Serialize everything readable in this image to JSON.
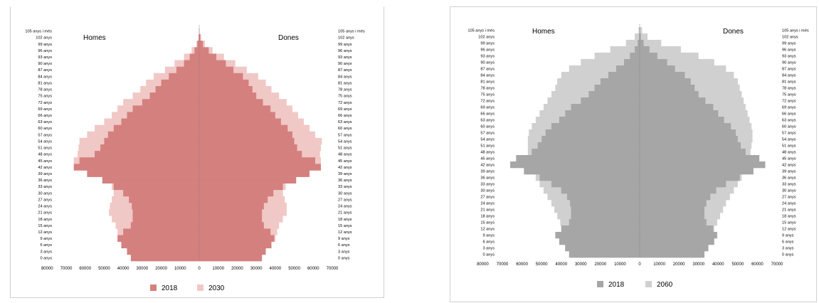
{
  "chart_data": [
    {
      "type": "bar",
      "orientation": "horizontal-pyramid",
      "left_label": "Homes",
      "right_label": "Dones",
      "xlim": [
        -80000,
        70000
      ],
      "x_ticks": [
        "80000",
        "70000",
        "60000",
        "50000",
        "40000",
        "30000",
        "20000",
        "10000",
        "0",
        "10000",
        "20000",
        "30000",
        "40000",
        "50000",
        "60000",
        "70000"
      ],
      "y_tick_labels": [
        "0 anys",
        "3 anys",
        "6 anys",
        "9 anys",
        "12 anys",
        "15 anys",
        "18 anys",
        "21 anys",
        "24 anys",
        "27 anys",
        "30 anys",
        "33 anys",
        "36 anys",
        "39 anys",
        "42 anys",
        "45 anys",
        "48 anys",
        "51 anys",
        "54 anys",
        "57 anys",
        "60 anys",
        "63 anys",
        "66 anys",
        "69 anys",
        "72 anys",
        "75 anys",
        "78 anys",
        "81 anys",
        "84 anys",
        "87 anys",
        "90 anys",
        "93 anys",
        "96 anys",
        "99 anys",
        "102 anys",
        "105 anys i més"
      ],
      "age_groups": [
        0,
        3,
        6,
        9,
        12,
        15,
        18,
        21,
        24,
        27,
        30,
        33,
        36,
        39,
        42,
        45,
        48,
        51,
        54,
        57,
        60,
        63,
        66,
        69,
        72,
        75,
        78,
        81,
        84,
        87,
        90,
        93,
        96,
        99,
        102,
        105
      ],
      "series": [
        {
          "name": "2018",
          "color": "#d4807f",
          "men": [
            36000,
            38000,
            41000,
            43000,
            40000,
            36000,
            35000,
            35000,
            35500,
            37000,
            40000,
            45000,
            51000,
            59000,
            66000,
            63000,
            55000,
            52000,
            50000,
            48000,
            45000,
            41000,
            38000,
            35000,
            30000,
            26000,
            23000,
            20000,
            16000,
            12000,
            8000,
            5000,
            2500,
            1000,
            300,
            50
          ],
          "women": [
            33000,
            35000,
            38000,
            39500,
            37500,
            34000,
            33000,
            33000,
            34000,
            36000,
            39000,
            44000,
            51000,
            58000,
            64000,
            61000,
            54000,
            51500,
            50000,
            49000,
            46500,
            43000,
            40000,
            37500,
            33500,
            30000,
            28000,
            26000,
            23000,
            18000,
            14000,
            9000,
            5000,
            2000,
            600,
            100
          ]
        },
        {
          "name": "2030",
          "color": "#f0c8c6",
          "men": [
            34000,
            37000,
            40000,
            42000,
            43000,
            44000,
            46000,
            47500,
            47000,
            46000,
            45000,
            46000,
            50000,
            57000,
            64000,
            66000,
            64000,
            63500,
            63000,
            59000,
            55000,
            50000,
            46000,
            43000,
            40000,
            35000,
            31000,
            28000,
            24000,
            18000,
            13000,
            8000,
            4000,
            1500,
            400,
            80
          ],
          "women": [
            32000,
            35000,
            38000,
            40000,
            41000,
            42000,
            44000,
            46000,
            46000,
            45000,
            44000,
            45500,
            50000,
            56000,
            62000,
            64000,
            63500,
            64000,
            64500,
            61000,
            58000,
            55000,
            52000,
            49000,
            46000,
            42000,
            38000,
            35000,
            31000,
            25000,
            19000,
            13000,
            7000,
            3000,
            900,
            150
          ]
        }
      ],
      "legend": [
        "2018",
        "2030"
      ],
      "legend_position": "bottom"
    },
    {
      "type": "bar",
      "orientation": "horizontal-pyramid",
      "left_label": "Homes",
      "right_label": "Dones",
      "xlim": [
        -80000,
        70000
      ],
      "x_ticks": [
        "80000",
        "70000",
        "60000",
        "50000",
        "40000",
        "30000",
        "20000",
        "10000",
        "0",
        "10000",
        "20000",
        "30000",
        "40000",
        "50000",
        "60000",
        "70000"
      ],
      "y_tick_labels": [
        "0 anys",
        "3 anys",
        "6 anys",
        "9 anys",
        "12 anys",
        "15 anys",
        "18 anys",
        "21 anys",
        "24 anys",
        "27 anys",
        "30 anys",
        "33 anys",
        "36 anys",
        "39 anys",
        "42 anys",
        "45 anys",
        "48 anys",
        "51 anys",
        "54 anys",
        "57 anys",
        "60 anys",
        "63 anys",
        "66 anys",
        "69 anys",
        "72 anys",
        "75 anys",
        "78 anys",
        "81 anys",
        "84 anys",
        "87 anys",
        "90 anys",
        "93 anys",
        "96 anys",
        "99 anys",
        "102 anys",
        "105 anys i més"
      ],
      "age_groups": [
        0,
        3,
        6,
        9,
        12,
        15,
        18,
        21,
        24,
        27,
        30,
        33,
        36,
        39,
        42,
        45,
        48,
        51,
        54,
        57,
        60,
        63,
        66,
        69,
        72,
        75,
        78,
        81,
        84,
        87,
        90,
        93,
        96,
        99,
        102,
        105
      ],
      "series": [
        {
          "name": "2018",
          "color": "#a6a6a6",
          "men": [
            36000,
            38000,
            41000,
            43000,
            40000,
            36000,
            35000,
            35000,
            35500,
            37000,
            40000,
            45000,
            51000,
            59000,
            66000,
            63000,
            55000,
            52000,
            50000,
            48000,
            45000,
            41000,
            38000,
            35000,
            30000,
            26000,
            23000,
            20000,
            16000,
            12000,
            8000,
            5000,
            2500,
            1000,
            300,
            50
          ],
          "women": [
            33000,
            35000,
            38000,
            39500,
            37500,
            34000,
            33000,
            33000,
            34000,
            36000,
            39000,
            44000,
            51000,
            58000,
            64000,
            61000,
            54000,
            51500,
            50000,
            49000,
            46500,
            43000,
            40000,
            37500,
            33500,
            30000,
            28000,
            26000,
            23000,
            18000,
            14000,
            9000,
            5000,
            2000,
            600,
            100
          ]
        },
        {
          "name": "2060",
          "color": "#d0d0d0",
          "men": [
            34000,
            35000,
            36000,
            37500,
            39000,
            40500,
            42000,
            43500,
            45000,
            47000,
            49000,
            51000,
            53000,
            55000,
            56000,
            56500,
            57000,
            57000,
            57000,
            56500,
            55000,
            53000,
            51000,
            49000,
            47000,
            45000,
            43000,
            42000,
            40000,
            36000,
            30000,
            23000,
            15000,
            7000,
            2500,
            600
          ],
          "women": [
            32000,
            33500,
            35000,
            36500,
            38000,
            39500,
            41000,
            42500,
            44000,
            46000,
            48000,
            50000,
            52000,
            54000,
            55000,
            56000,
            56500,
            57000,
            57500,
            57500,
            57000,
            56000,
            55000,
            54000,
            53000,
            52000,
            51000,
            50000,
            48000,
            44000,
            38000,
            30000,
            21000,
            11000,
            4000,
            1200
          ]
        }
      ],
      "legend": [
        "2018",
        "2060"
      ],
      "legend_position": "bottom"
    }
  ]
}
